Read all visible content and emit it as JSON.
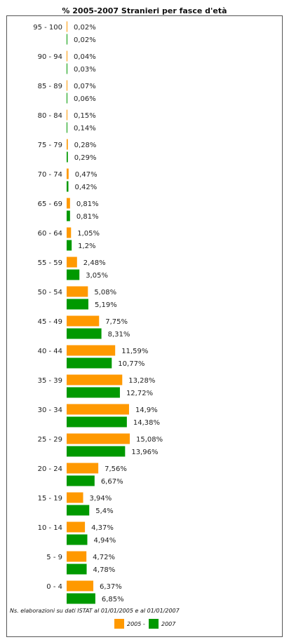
{
  "chart_data": {
    "type": "bar",
    "orientation": "horizontal",
    "title": "% 2005-2007 Stranieri per fasce d'età",
    "categories": [
      "95 - 100",
      "90 - 94",
      "85 - 89",
      "80 - 84",
      "75 - 79",
      "70 - 74",
      "65 - 69",
      "60 - 64",
      "55 - 59",
      "50 - 54",
      "45 - 49",
      "40 - 44",
      "35 - 39",
      "30 - 34",
      "25 - 29",
      "20 - 24",
      "15 - 19",
      "10 - 14",
      "5 - 9",
      "0 - 4"
    ],
    "series": [
      {
        "name": "2005",
        "color": "#ff9900",
        "values": [
          0.02,
          0.04,
          0.07,
          0.15,
          0.28,
          0.47,
          0.81,
          1.05,
          2.48,
          5.08,
          7.75,
          11.59,
          13.28,
          14.9,
          15.08,
          7.56,
          3.94,
          4.37,
          4.72,
          6.37
        ],
        "labels": [
          "0,02%",
          "0,04%",
          "0,07%",
          "0,15%",
          "0,28%",
          "0,47%",
          "0,81%",
          "1,05%",
          "2,48%",
          "5,08%",
          "7,75%",
          "11,59%",
          "13,28%",
          "14,9%",
          "15,08%",
          "7,56%",
          "3,94%",
          "4,37%",
          "4,72%",
          "6,37%"
        ]
      },
      {
        "name": "2007",
        "color": "#009900",
        "values": [
          0.02,
          0.03,
          0.06,
          0.14,
          0.29,
          0.42,
          0.81,
          1.2,
          3.05,
          5.19,
          8.31,
          10.77,
          12.72,
          14.38,
          13.96,
          6.67,
          5.4,
          4.94,
          4.78,
          6.85
        ],
        "labels": [
          "0,02%",
          "0,03%",
          "0,06%",
          "0,14%",
          "0,29%",
          "0,42%",
          "0,81%",
          "1,2%",
          "3,05%",
          "5,19%",
          "8,31%",
          "10,77%",
          "12,72%",
          "14,38%",
          "13,96%",
          "6,67%",
          "5,4%",
          "4,94%",
          "4,78%",
          "6,85%"
        ]
      }
    ],
    "note": "Ns. elaborazioni su dati ISTAT al 01/01/2005 e al 01/01/2007",
    "legend": {
      "placement": "bottom",
      "items": [
        {
          "label": "2005 -"
        },
        {
          "label": "2007"
        }
      ]
    }
  }
}
